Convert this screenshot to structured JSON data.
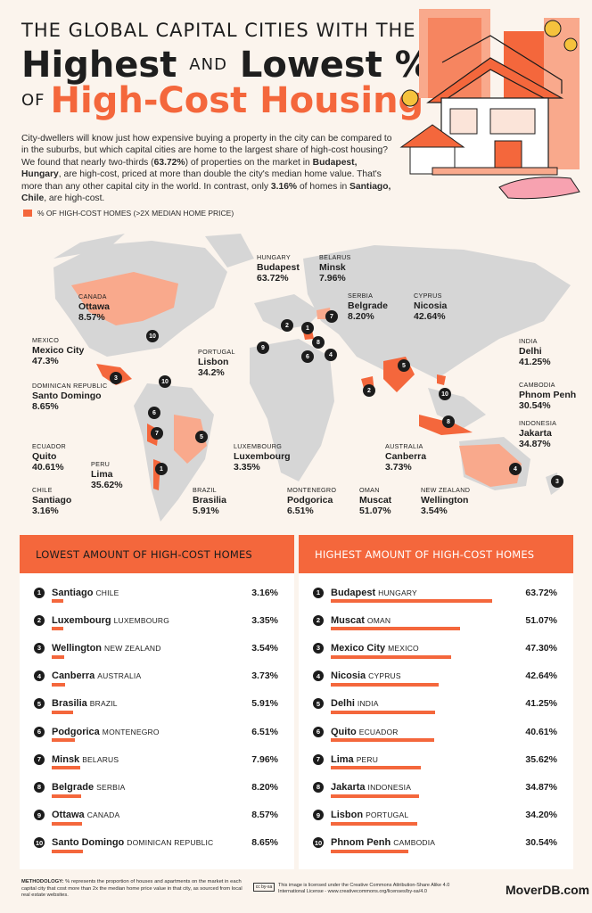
{
  "header": {
    "line1": "THE GLOBAL CAPITAL CITIES WITH THE",
    "highest": "Highest",
    "and": "AND",
    "lowest": "Lowest %",
    "of": "OF",
    "high_cost": "High-Cost Housing"
  },
  "intro": {
    "p1": "City-dwellers will know just how expensive buying a property in the city can be compared to in the suburbs, but which capital cities are home to the largest share of high-cost housing? We found that nearly two-thirds (",
    "b1": "63.72%",
    "p2": ") of properties on the market in ",
    "b2": "Budapest, Hungary",
    "p3": ", are high-cost, priced at more than double the city's median home value. That's more than any other capital city in the world. In contrast, only ",
    "b3": "3.16%",
    "p4": " of homes in ",
    "b4": "Santiago, Chile",
    "p5": ", are high-cost."
  },
  "legend": "% OF HIGH-COST HOMES (>2X MEDIAN HOME PRICE)",
  "colors": {
    "accent": "#f4673c",
    "light_accent": "#f9a98c",
    "land": "#d6d6d6",
    "dark": "#1c1c1c"
  },
  "map_labels": [
    {
      "country": "HUNGARY",
      "city": "Budapest",
      "pct": "63.72%"
    },
    {
      "country": "BELARUS",
      "city": "Minsk",
      "pct": "7.96%"
    },
    {
      "country": "CANADA",
      "city": "Ottawa",
      "pct": "8.57%"
    },
    {
      "country": "SERBIA",
      "city": "Belgrade",
      "pct": "8.20%"
    },
    {
      "country": "CYPRUS",
      "city": "Nicosia",
      "pct": "42.64%"
    },
    {
      "country": "MEXICO",
      "city": "Mexico City",
      "pct": "47.3%"
    },
    {
      "country": "PORTUGAL",
      "city": "Lisbon",
      "pct": "34.2%"
    },
    {
      "country": "INDIA",
      "city": "Delhi",
      "pct": "41.25%"
    },
    {
      "country": "DOMINICAN REPUBLIC",
      "city": "Santo Domingo",
      "pct": "8.65%"
    },
    {
      "country": "CAMBODIA",
      "city": "Phnom Penh",
      "pct": "30.54%"
    },
    {
      "country": "INDONESIA",
      "city": "Jakarta",
      "pct": "34.87%"
    },
    {
      "country": "ECUADOR",
      "city": "Quito",
      "pct": "40.61%"
    },
    {
      "country": "LUXEMBOURG",
      "city": "Luxembourg",
      "pct": "3.35%"
    },
    {
      "country": "AUSTRALIA",
      "city": "Canberra",
      "pct": "3.73%"
    },
    {
      "country": "PERU",
      "city": "Lima",
      "pct": "35.62%"
    },
    {
      "country": "CHILE",
      "city": "Santiago",
      "pct": "3.16%"
    },
    {
      "country": "BRAZIL",
      "city": "Brasilia",
      "pct": "5.91%"
    },
    {
      "country": "MONTENEGRO",
      "city": "Podgorica",
      "pct": "6.51%"
    },
    {
      "country": "OMAN",
      "city": "Muscat",
      "pct": "51.07%"
    },
    {
      "country": "NEW ZEALAND",
      "city": "Wellington",
      "pct": "3.54%"
    }
  ],
  "chart_data": [
    {
      "type": "table",
      "title": "LOWEST AMOUNT OF HIGH-COST HOMES",
      "rows": [
        {
          "rank": "1",
          "city": "Santiago",
          "country": "CHILE",
          "value": 3.16,
          "label": "3.16%"
        },
        {
          "rank": "2",
          "city": "Luxembourg",
          "country": "LUXEMBOURG",
          "value": 3.35,
          "label": "3.35%"
        },
        {
          "rank": "3",
          "city": "Wellington",
          "country": "NEW ZEALAND",
          "value": 3.54,
          "label": "3.54%"
        },
        {
          "rank": "4",
          "city": "Canberra",
          "country": "AUSTRALIA",
          "value": 3.73,
          "label": "3.73%"
        },
        {
          "rank": "5",
          "city": "Brasilia",
          "country": "BRAZIL",
          "value": 5.91,
          "label": "5.91%"
        },
        {
          "rank": "6",
          "city": "Podgorica",
          "country": "MONTENEGRO",
          "value": 6.51,
          "label": "6.51%"
        },
        {
          "rank": "7",
          "city": "Minsk",
          "country": "BELARUS",
          "value": 7.96,
          "label": "7.96%"
        },
        {
          "rank": "8",
          "city": "Belgrade",
          "country": "SERBIA",
          "value": 8.2,
          "label": "8.20%"
        },
        {
          "rank": "9",
          "city": "Ottawa",
          "country": "CANADA",
          "value": 8.57,
          "label": "8.57%"
        },
        {
          "rank": "10",
          "city": "Santo Domingo",
          "country": "DOMINICAN REPUBLIC",
          "value": 8.65,
          "label": "8.65%"
        }
      ]
    },
    {
      "type": "bar",
      "title": "HIGHEST AMOUNT OF HIGH-COST HOMES",
      "rows": [
        {
          "rank": "1",
          "city": "Budapest",
          "country": "HUNGARY",
          "value": 63.72,
          "label": "63.72%"
        },
        {
          "rank": "2",
          "city": "Muscat",
          "country": "OMAN",
          "value": 51.07,
          "label": "51.07%"
        },
        {
          "rank": "3",
          "city": "Mexico City",
          "country": "MEXICO",
          "value": 47.3,
          "label": "47.30%"
        },
        {
          "rank": "4",
          "city": "Nicosia",
          "country": "CYPRUS",
          "value": 42.64,
          "label": "42.64%"
        },
        {
          "rank": "5",
          "city": "Delhi",
          "country": "INDIA",
          "value": 41.25,
          "label": "41.25%"
        },
        {
          "rank": "6",
          "city": "Quito",
          "country": "ECUADOR",
          "value": 40.61,
          "label": "40.61%"
        },
        {
          "rank": "7",
          "city": "Lima",
          "country": "PERU",
          "value": 35.62,
          "label": "35.62%"
        },
        {
          "rank": "8",
          "city": "Jakarta",
          "country": "INDONESIA",
          "value": 34.87,
          "label": "34.87%"
        },
        {
          "rank": "9",
          "city": "Lisbon",
          "country": "PORTUGAL",
          "value": 34.2,
          "label": "34.20%"
        },
        {
          "rank": "10",
          "city": "Phnom Penh",
          "country": "CAMBODIA",
          "value": 30.54,
          "label": "30.54%"
        }
      ]
    }
  ],
  "footer": {
    "method_label": "METHODOLOGY:",
    "method_text": " % represents the proportion of houses and apartments on the market in each capital city that cost more than 2x the median home price value in that city, as sourced from local real estate websites.",
    "cc": "cc by-sa",
    "license": "This image is licensed under the Creative Commons Attribution-Share Alike 4.0 International License - www.creativecommons.org/licenses/by-sa/4.0",
    "brand": "MoverDB.com"
  }
}
